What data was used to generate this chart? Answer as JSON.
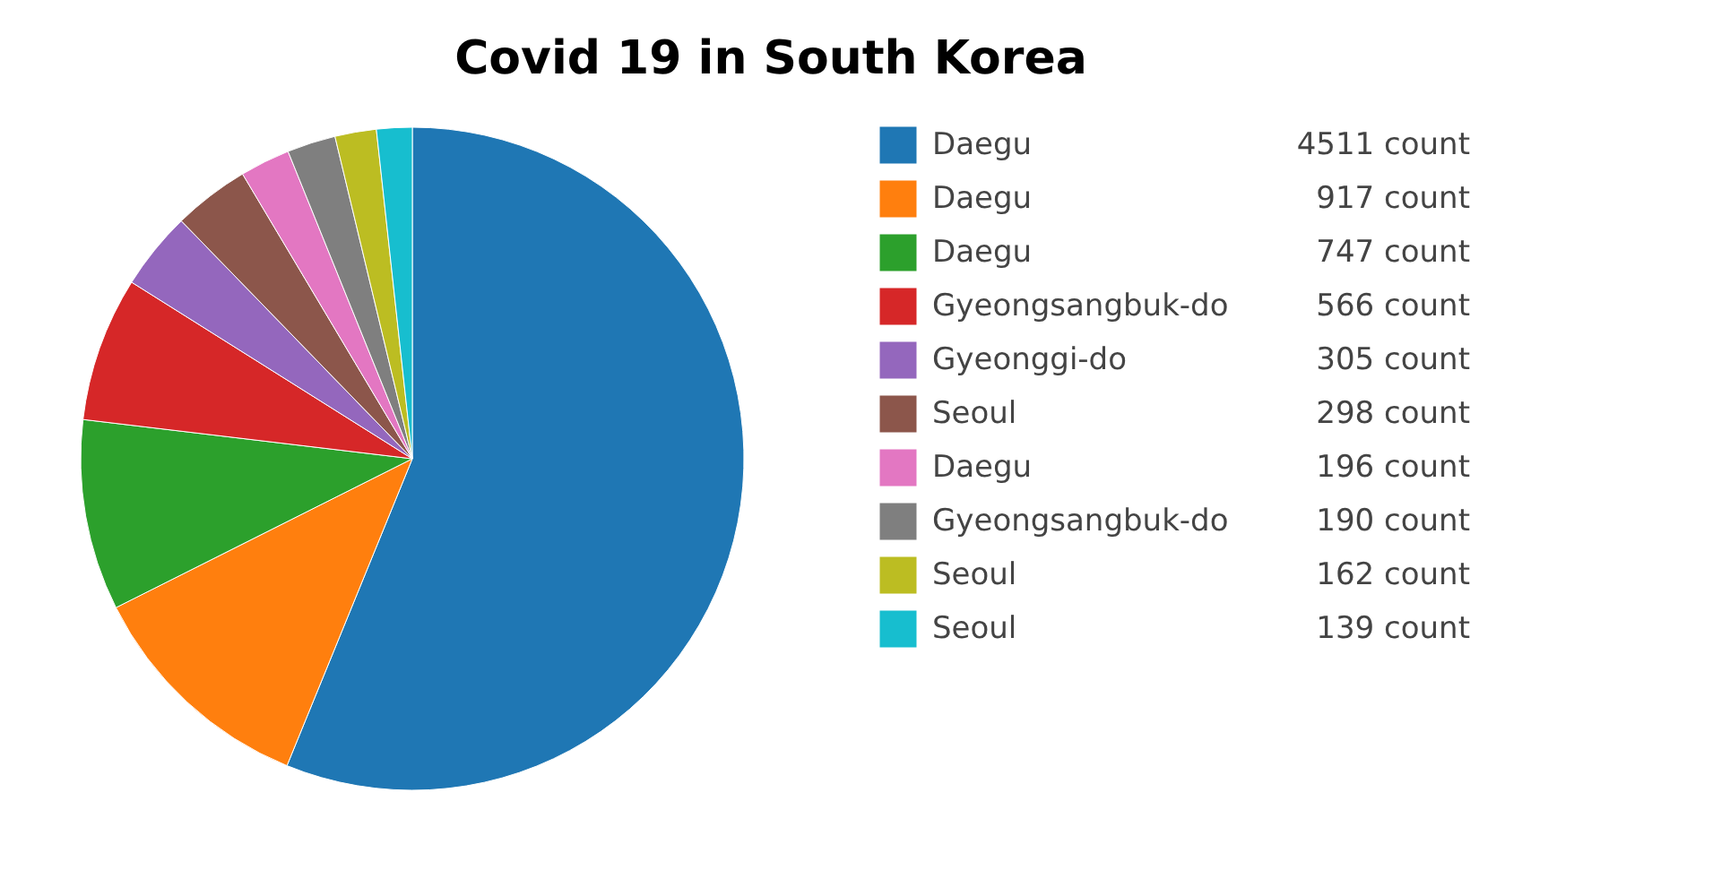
{
  "chart_data": {
    "type": "pie",
    "title": "Covid 19 in South Korea",
    "categories": [
      "Daegu",
      "Daegu",
      "Daegu",
      "Gyeongsangbuk-do",
      "Gyeonggi-do",
      "Seoul",
      "Daegu",
      "Gyeongsangbuk-do",
      "Seoul",
      "Seoul"
    ],
    "values": [
      4511,
      917,
      747,
      566,
      305,
      298,
      196,
      190,
      162,
      139
    ],
    "value_labels": [
      "4511 count",
      "917 count",
      "747 count",
      "566 count",
      "305 count",
      "298 count",
      "196 count",
      "190 count",
      "162 count",
      "139 count"
    ],
    "colors": [
      "#1f77b4",
      "#ff7f0e",
      "#2ca02c",
      "#d62728",
      "#9467bd",
      "#8c564b",
      "#e377c2",
      "#7f7f7f",
      "#bcbd22",
      "#17becf"
    ],
    "legend": "right"
  }
}
